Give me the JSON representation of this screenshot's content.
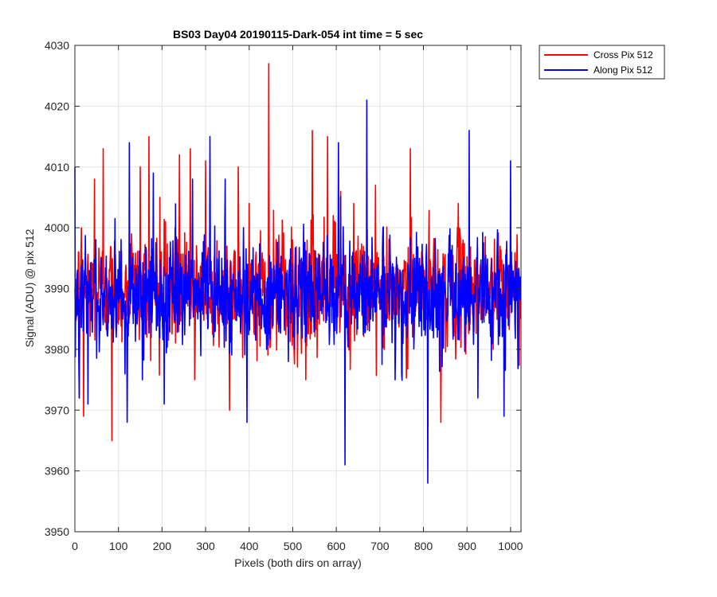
{
  "chart_data": {
    "type": "line",
    "title": "BS03 Day04 20190115-Dark-054 int time = 5 sec",
    "xlabel": "Pixels (both dirs on array)",
    "ylabel": "Signal (ADU) @ pix 512",
    "xlim": [
      0,
      1024
    ],
    "ylim": [
      3950,
      4030
    ],
    "xticks": [
      0,
      100,
      200,
      300,
      400,
      500,
      600,
      700,
      800,
      900,
      1000
    ],
    "yticks": [
      3950,
      3960,
      3970,
      3980,
      3990,
      4000,
      4010,
      4020,
      4030
    ],
    "grid": true,
    "legend_position": "top-right-outside",
    "series": [
      {
        "name": "Cross Pix 512",
        "color": "#ff0000",
        "sample_count": 1024,
        "mean": 3990,
        "points": [
          [
            0,
            3990
          ],
          [
            10,
            3972
          ],
          [
            15,
            4000
          ],
          [
            20,
            3969
          ],
          [
            45,
            4008
          ],
          [
            65,
            4013
          ],
          [
            85,
            3965
          ],
          [
            110,
            3985
          ],
          [
            130,
            3999
          ],
          [
            150,
            4010
          ],
          [
            170,
            4015
          ],
          [
            195,
            4005
          ],
          [
            230,
            4000
          ],
          [
            240,
            4012
          ],
          [
            265,
            4013
          ],
          [
            275,
            3975
          ],
          [
            300,
            4011
          ],
          [
            355,
            3970
          ],
          [
            375,
            4010
          ],
          [
            400,
            4004
          ],
          [
            445,
            4027
          ],
          [
            460,
            3993
          ],
          [
            500,
            3998
          ],
          [
            530,
            3975
          ],
          [
            545,
            4016
          ],
          [
            580,
            4015
          ],
          [
            590,
            3990
          ],
          [
            610,
            4006
          ],
          [
            640,
            4004
          ],
          [
            690,
            4007
          ],
          [
            730,
            3985
          ],
          [
            770,
            4013
          ],
          [
            790,
            3990
          ],
          [
            820,
            3992
          ],
          [
            840,
            3968
          ],
          [
            880,
            4004
          ],
          [
            920,
            3990
          ],
          [
            960,
            3980
          ],
          [
            1000,
            3995
          ],
          [
            1023,
            3985
          ]
        ]
      },
      {
        "name": "Along Pix 512",
        "color": "#0000ff",
        "sample_count": 1024,
        "mean": 3989,
        "points": [
          [
            0,
            4010
          ],
          [
            10,
            3972
          ],
          [
            30,
            3971
          ],
          [
            60,
            3995
          ],
          [
            95,
            3982
          ],
          [
            120,
            3968
          ],
          [
            125,
            4014
          ],
          [
            155,
            3975
          ],
          [
            180,
            4009
          ],
          [
            205,
            3971
          ],
          [
            270,
            4008
          ],
          [
            310,
            4015
          ],
          [
            345,
            4008
          ],
          [
            395,
            3968
          ],
          [
            440,
            3980
          ],
          [
            490,
            3978
          ],
          [
            520,
            3995
          ],
          [
            565,
            3989
          ],
          [
            605,
            4014
          ],
          [
            620,
            3961
          ],
          [
            670,
            4021
          ],
          [
            700,
            3990
          ],
          [
            735,
            3975
          ],
          [
            780,
            3995
          ],
          [
            810,
            3958
          ],
          [
            850,
            3990
          ],
          [
            905,
            4016
          ],
          [
            925,
            3972
          ],
          [
            945,
            3986
          ],
          [
            985,
            3969
          ],
          [
            1000,
            4011
          ],
          [
            1023,
            3992
          ]
        ]
      }
    ],
    "labels": {
      "title": "BS03 Day04 20190115-Dark-054 int time = 5 sec",
      "xlabel": "Pixels (both dirs on array)",
      "ylabel": "Signal (ADU) @ pix 512",
      "x_ticks": [
        "0",
        "100",
        "200",
        "300",
        "400",
        "500",
        "600",
        "700",
        "800",
        "900",
        "1000"
      ],
      "y_ticks": [
        "3950",
        "3960",
        "3970",
        "3980",
        "3990",
        "4000",
        "4010",
        "4020",
        "4030"
      ],
      "legend": [
        "Cross Pix 512",
        "Along Pix 512"
      ]
    }
  }
}
